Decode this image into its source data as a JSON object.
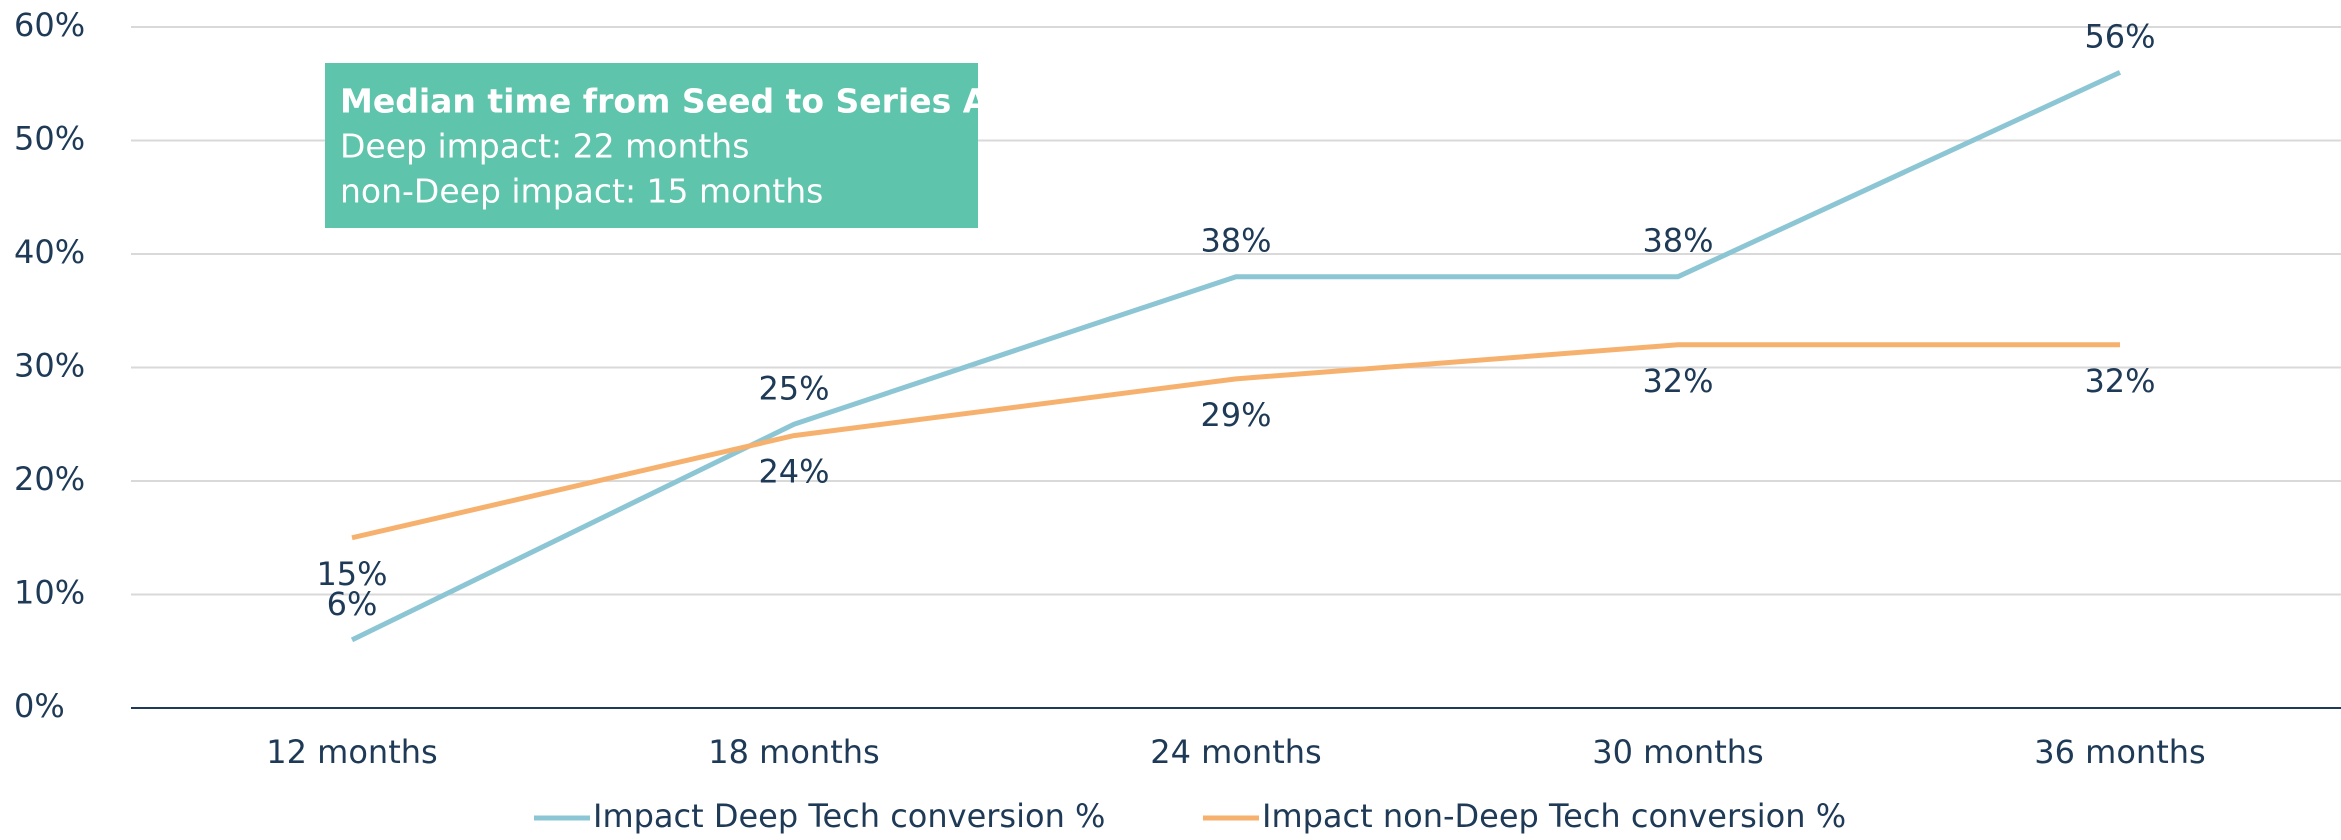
{
  "chart_data": {
    "type": "line",
    "categories": [
      "12 months",
      "18 months",
      "24 months",
      "30 months",
      "36 months"
    ],
    "series": [
      {
        "name": "Impact Deep Tech conversion %",
        "color": "#8cc6d4",
        "values": [
          6,
          25,
          38,
          38,
          56
        ],
        "value_labels": [
          "6%",
          "25%",
          "38%",
          "38%",
          "56%"
        ]
      },
      {
        "name": "Impact non-Deep Tech conversion %",
        "color": "#f6b16e",
        "values": [
          15,
          24,
          29,
          32,
          32
        ],
        "value_labels": [
          "15%",
          "24%",
          "29%",
          "32%",
          "32%"
        ]
      }
    ],
    "ylim": [
      0,
      60
    ],
    "yticks": [
      {
        "value": 0,
        "label": "0%"
      },
      {
        "value": 10,
        "label": "10%"
      },
      {
        "value": 20,
        "label": "20%"
      },
      {
        "value": 30,
        "label": "30%"
      },
      {
        "value": 40,
        "label": "40%"
      },
      {
        "value": 50,
        "label": "50%"
      },
      {
        "value": 60,
        "label": "60%"
      }
    ],
    "grid": true,
    "legend": "bottom",
    "annotation": {
      "title": "Median time from Seed to Series A:",
      "lines": [
        "Deep impact: 22 months",
        "non-Deep impact: 15 months"
      ],
      "color": "#5fc4ac"
    }
  }
}
